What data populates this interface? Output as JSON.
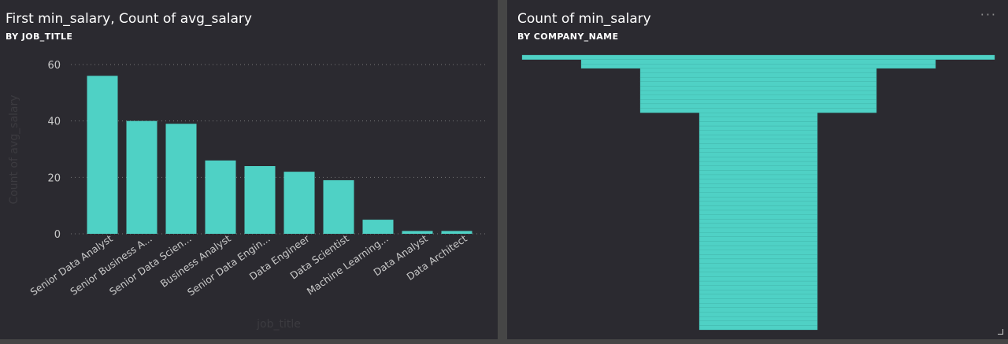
{
  "tiles": {
    "left": {
      "title": "First min_salary, Count of avg_salary",
      "subtitle": "BY JOB_TITLE"
    },
    "right": {
      "title": "Count of min_salary",
      "subtitle": "BY COMPANY_NAME",
      "more_label": "···"
    }
  },
  "colors": {
    "series": "#4fd1c5",
    "background": "#2b2a30",
    "gutter": "#464646",
    "grid": "#777777",
    "tick_text": "#c8c8c8",
    "axis_title": "#3c3b40"
  },
  "chart_data": [
    {
      "type": "bar",
      "title": "First min_salary, Count of avg_salary",
      "subtitle": "BY JOB_TITLE",
      "xlabel": "job_title",
      "ylabel": "Count of avg_salary",
      "ylim": [
        0,
        60
      ],
      "yticks": [
        0,
        20,
        40,
        60
      ],
      "grid": true,
      "categories": [
        "Senior Data Analyst",
        "Senior Business A...",
        "Senior Data Scien...",
        "Business Analyst",
        "Senior Data Engin...",
        "Data Engineer",
        "Data Scientist",
        "Machine Learning...",
        "Data Analyst",
        "Data Architect"
      ],
      "series": [
        {
          "values": [
            56,
            40,
            39,
            26,
            24,
            22,
            19,
            5,
            1,
            1
          ]
        }
      ]
    },
    {
      "type": "funnel",
      "title": "Count of min_salary",
      "subtitle": "BY COMPANY_NAME",
      "segments": [
        {
          "value": 100,
          "rows": 1
        },
        {
          "value": 75,
          "rows": 2
        },
        {
          "value": 50,
          "rows": 10
        },
        {
          "value": 25,
          "rows": 49
        }
      ]
    }
  ]
}
